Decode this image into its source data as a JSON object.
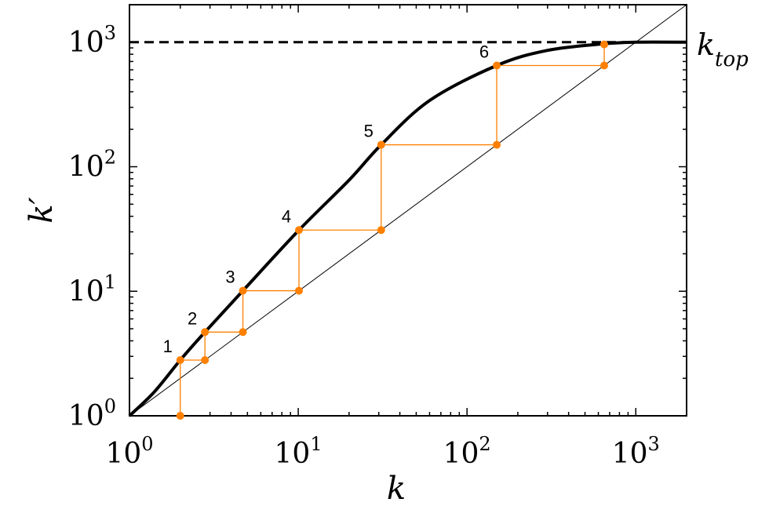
{
  "chart_data": {
    "type": "line",
    "title": "",
    "xlabel": "k",
    "ylabel": "k′",
    "xscale": "log",
    "yscale": "log",
    "xlim": [
      1,
      2000
    ],
    "ylim": [
      1,
      2000
    ],
    "grid": false,
    "legend": "none",
    "x_ticks": [
      {
        "value": 1,
        "base": "10",
        "exp": "0"
      },
      {
        "value": 10,
        "base": "10",
        "exp": "1"
      },
      {
        "value": 100,
        "base": "10",
        "exp": "2"
      },
      {
        "value": 1000,
        "base": "10",
        "exp": "3"
      }
    ],
    "y_ticks": [
      {
        "value": 1,
        "base": "10",
        "exp": "0"
      },
      {
        "value": 10,
        "base": "10",
        "exp": "1"
      },
      {
        "value": 100,
        "base": "10",
        "exp": "2"
      },
      {
        "value": 1000,
        "base": "10",
        "exp": "3"
      }
    ],
    "series": [
      {
        "label": "k'(k)",
        "style": "thick-solid",
        "color": "#000000",
        "points": [
          [
            1,
            1
          ],
          [
            1.4,
            1.55
          ],
          [
            2,
            2.8
          ],
          [
            2.8,
            4.7
          ],
          [
            4.7,
            10.1
          ],
          [
            10.1,
            31
          ],
          [
            20,
            78
          ],
          [
            31,
            150
          ],
          [
            60,
            340
          ],
          [
            150,
            650
          ],
          [
            300,
            860
          ],
          [
            640,
            970
          ],
          [
            1000,
            1000
          ],
          [
            2000,
            1000
          ]
        ]
      },
      {
        "label": "k' = k",
        "style": "thin-solid",
        "color": "#000000",
        "points": [
          [
            1,
            1
          ],
          [
            2000,
            2000
          ]
        ]
      },
      {
        "label": "k_top",
        "style": "dashed",
        "color": "#000000",
        "points": [
          [
            1,
            1000
          ],
          [
            1000,
            1000
          ]
        ]
      }
    ],
    "iteration": {
      "color": "#ff8000",
      "start": [
        2,
        1
      ],
      "steps": [
        {
          "label": "1",
          "x": 2,
          "y": 2.8
        },
        {
          "label": "2",
          "x": 2.8,
          "y": 4.7
        },
        {
          "label": "3",
          "x": 4.7,
          "y": 10.1
        },
        {
          "label": "4",
          "x": 10.1,
          "y": 31
        },
        {
          "label": "5",
          "x": 31,
          "y": 150
        },
        {
          "label": "6",
          "x": 150,
          "y": 650
        }
      ],
      "final": [
        650,
        960
      ]
    },
    "annotations": [
      {
        "text": "k",
        "subscript": "top",
        "anchor_y": 1000
      }
    ]
  }
}
